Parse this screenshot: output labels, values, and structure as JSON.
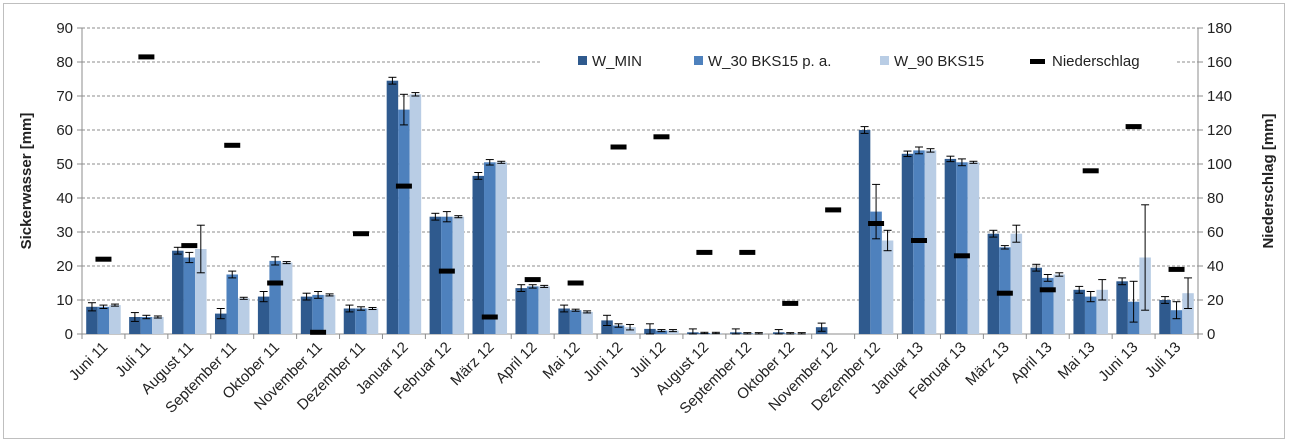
{
  "chart_data": {
    "type": "bar",
    "ylabel": "Sickerwasser [mm]",
    "y2label": "Niederschlag [mm]",
    "ylim": [
      0,
      90
    ],
    "y2lim": [
      0,
      180
    ],
    "yticks": [
      "0",
      "10",
      "20",
      "30",
      "40",
      "50",
      "60",
      "70",
      "80",
      "90"
    ],
    "y2ticks": [
      "0",
      "20",
      "40",
      "60",
      "80",
      "100",
      "120",
      "140",
      "160",
      "180"
    ],
    "grid": true,
    "legend_position": "top-right",
    "categories": [
      "Juni 11",
      "Juli 11",
      "August 11",
      "September 11",
      "Oktober 11",
      "November 11",
      "Dezember 11",
      "Januar 12",
      "Februar 12",
      "März 12",
      "April 12",
      "Mai 12",
      "Juni 12",
      "Juli 12",
      "August 12",
      "September 12",
      "Oktober 12",
      "November 12",
      "Dezember 12",
      "Januar 13",
      "Februar 13",
      "März 13",
      "April 13",
      "Mai 13",
      "Juni 13",
      "Juli 13"
    ],
    "series": [
      {
        "name": "W_MIN",
        "axis": "left",
        "kind": "bar",
        "color": "#2f5a8e",
        "values": [
          8,
          5,
          24.5,
          6,
          11,
          11,
          7.5,
          74.5,
          34.5,
          46.5,
          13.5,
          7.5,
          4,
          1.5,
          0.5,
          0.5,
          0.5,
          2,
          60,
          53,
          51.5,
          29.5,
          19.5,
          13,
          15.5,
          10
        ],
        "errors": [
          1.2,
          1.3,
          1,
          1.5,
          1.5,
          1,
          1,
          1,
          1,
          1,
          1,
          1,
          1.5,
          1.5,
          1,
          1,
          0.8,
          1.2,
          1,
          0.8,
          0.8,
          1,
          1,
          1,
          1,
          1
        ]
      },
      {
        "name": "W_30 BKS15 p. a.",
        "axis": "left",
        "kind": "bar",
        "color": "#4e81bd",
        "values": [
          8,
          5,
          22.5,
          17.5,
          21.5,
          11.5,
          7.5,
          66,
          34.5,
          50.5,
          14,
          7,
          2.5,
          1,
          0.3,
          0.2,
          0.2,
          0,
          36,
          54,
          50.5,
          25.5,
          16.5,
          11,
          9.5,
          7
        ],
        "errors": [
          0.5,
          0.5,
          1.5,
          1,
          1.2,
          1,
          0.5,
          4.5,
          1.5,
          0.8,
          0.5,
          0.3,
          0.5,
          0.3,
          0.2,
          0.2,
          0.2,
          0,
          8,
          1,
          1,
          0.5,
          1,
          1.5,
          6,
          2.5
        ]
      },
      {
        "name": "W_90 BKS15",
        "axis": "left",
        "kind": "bar",
        "color": "#b9cde5",
        "values": [
          8.5,
          5,
          25,
          10.5,
          21,
          11.5,
          7.5,
          70.5,
          34.5,
          50.5,
          14,
          6.5,
          2,
          1,
          0.3,
          0.2,
          0.2,
          0,
          27.5,
          54,
          50.5,
          29.5,
          17.5,
          13,
          22.5,
          12
        ],
        "errors": [
          0.3,
          0.3,
          7,
          0.3,
          0.3,
          0.3,
          0.3,
          0.5,
          0.3,
          0.3,
          0.3,
          0.3,
          0.8,
          0.3,
          0.2,
          0.2,
          0.2,
          0,
          3,
          0.5,
          0.3,
          2.5,
          0.5,
          3,
          15.5,
          4.5
        ]
      },
      {
        "name": "Niederschlag",
        "axis": "right",
        "kind": "marker",
        "color": "#000000",
        "values": [
          44,
          163,
          52,
          111,
          30,
          1,
          59,
          87,
          37,
          10,
          32,
          30,
          110,
          116,
          48,
          48,
          18,
          73,
          65,
          55,
          46,
          24,
          26,
          96,
          122,
          38
        ]
      }
    ]
  }
}
